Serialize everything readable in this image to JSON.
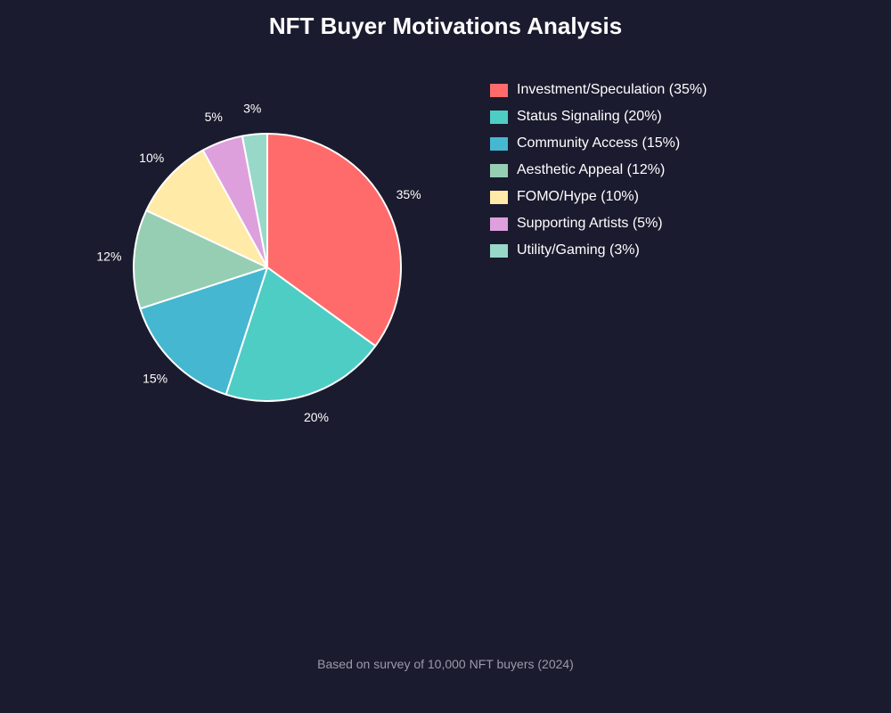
{
  "chart_data": {
    "type": "pie",
    "title": "NFT Buyer Motivations Analysis",
    "legend_position": "right",
    "slices": [
      {
        "label": "Investment/Speculation (35%)",
        "value": 35,
        "data_label": "35%",
        "color": "#ff6b6b"
      },
      {
        "label": "Status Signaling (20%)",
        "value": 20,
        "data_label": "20%",
        "color": "#4ecdc4"
      },
      {
        "label": "Community Access (15%)",
        "value": 15,
        "data_label": "15%",
        "color": "#45b7d1"
      },
      {
        "label": "Aesthetic Appeal (12%)",
        "value": 12,
        "data_label": "12%",
        "color": "#96ceb4"
      },
      {
        "label": "FOMO/Hype (10%)",
        "value": 10,
        "data_label": "10%",
        "color": "#ffeaa7"
      },
      {
        "label": "Supporting Artists (5%)",
        "value": 5,
        "data_label": "5%",
        "color": "#dda0dd"
      },
      {
        "label": "Utility/Gaming (3%)",
        "value": 3,
        "data_label": "3%",
        "color": "#98d8c8"
      }
    ]
  },
  "footnote": "Based on survey of 10,000 NFT buyers (2024)",
  "colors": {
    "background": "#1b1b2f",
    "slice_border": "#ffffff"
  }
}
